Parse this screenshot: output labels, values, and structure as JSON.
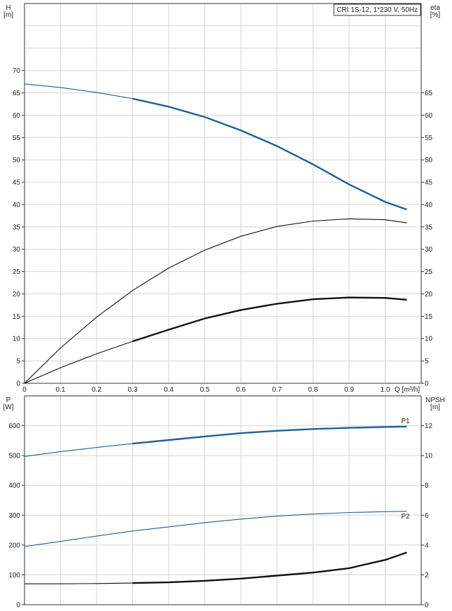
{
  "chart_data": [
    {
      "type": "line",
      "title": "CRI 1S-12, 1*230 V, 50Hz",
      "xlabel": "Q [m³/h]",
      "x_ticks": [
        "0",
        "0.1",
        "0.2",
        "0.3",
        "0.4",
        "0.5",
        "0.6",
        "0.7",
        "0.8",
        "0.9",
        "1.0"
      ],
      "xlim": [
        0,
        1.1
      ],
      "left_axis": {
        "label_top": "H",
        "label_unit": "[m]",
        "ylim": [
          0,
          70
        ],
        "ticks": [
          0,
          5,
          10,
          15,
          20,
          25,
          30,
          35,
          40,
          45,
          50,
          55,
          60,
          65,
          70
        ]
      },
      "right_axis": {
        "label_top": "eta",
        "label_unit": "[%]",
        "ylim": [
          0,
          70
        ],
        "ticks": [
          0,
          5,
          10,
          15,
          20,
          25,
          30,
          35,
          40,
          45,
          50,
          55,
          60,
          65
        ]
      },
      "series": [
        {
          "axis": "left",
          "color": "#1f5f9a",
          "points": [
            [
              0,
              67
            ],
            [
              0.1,
              66.2
            ],
            [
              0.2,
              65.1
            ],
            [
              0.3,
              63.7
            ],
            [
              0.4,
              61.9
            ],
            [
              0.5,
              59.6
            ],
            [
              0.6,
              56.6
            ],
            [
              0.7,
              53.1
            ],
            [
              0.8,
              49.0
            ],
            [
              0.9,
              44.5
            ],
            [
              1.0,
              40.6
            ],
            [
              1.06,
              38.9
            ]
          ],
          "highlight": [
            0.3,
            1.06
          ]
        },
        {
          "axis": "right",
          "color": "#111111",
          "points": [
            [
              0,
              0
            ],
            [
              0.1,
              7.9
            ],
            [
              0.2,
              14.8
            ],
            [
              0.3,
              20.8
            ],
            [
              0.4,
              25.8
            ],
            [
              0.5,
              29.8
            ],
            [
              0.6,
              32.9
            ],
            [
              0.7,
              35.1
            ],
            [
              0.8,
              36.3
            ],
            [
              0.9,
              36.8
            ],
            [
              1.0,
              36.6
            ],
            [
              1.06,
              35.9
            ]
          ],
          "highlight": null
        },
        {
          "axis": "right",
          "color": "#111111",
          "points": [
            [
              0,
              0
            ],
            [
              0.1,
              3.5
            ],
            [
              0.2,
              6.6
            ],
            [
              0.3,
              9.4
            ],
            [
              0.4,
              12.0
            ],
            [
              0.5,
              14.5
            ],
            [
              0.6,
              16.4
            ],
            [
              0.7,
              17.8
            ],
            [
              0.8,
              18.8
            ],
            [
              0.9,
              19.2
            ],
            [
              1.0,
              19.1
            ],
            [
              1.06,
              18.7
            ]
          ],
          "highlight": [
            0.3,
            1.06
          ]
        }
      ]
    },
    {
      "type": "line",
      "xlim": [
        0,
        1.1
      ],
      "left_axis": {
        "label_top": "P",
        "label_unit": "[W]",
        "ylim": [
          0,
          700
        ],
        "ticks": [
          0,
          100,
          200,
          300,
          400,
          500,
          600
        ]
      },
      "right_axis": {
        "label_top": "NPSH",
        "label_unit": "[m]",
        "ylim": [
          0,
          14
        ],
        "ticks": [
          0,
          2,
          4,
          6,
          8,
          10,
          12
        ]
      },
      "series": [
        {
          "name": "P1",
          "axis": "left",
          "color": "#1f5f9a",
          "points": [
            [
              0,
              497
            ],
            [
              0.1,
              513
            ],
            [
              0.2,
              527
            ],
            [
              0.3,
              540
            ],
            [
              0.4,
              552
            ],
            [
              0.5,
              564
            ],
            [
              0.6,
              575
            ],
            [
              0.7,
              583
            ],
            [
              0.8,
              589
            ],
            [
              0.9,
              593
            ],
            [
              1.0,
              596
            ],
            [
              1.06,
              597
            ]
          ],
          "highlight": [
            0.3,
            1.06
          ]
        },
        {
          "name": "P2",
          "axis": "left",
          "color": "#1f5f9a",
          "points": [
            [
              0,
              195
            ],
            [
              0.1,
              212
            ],
            [
              0.2,
              230
            ],
            [
              0.3,
              247
            ],
            [
              0.4,
              261
            ],
            [
              0.5,
              275
            ],
            [
              0.6,
              287
            ],
            [
              0.7,
              297
            ],
            [
              0.8,
              304
            ],
            [
              0.9,
              309
            ],
            [
              1.0,
              312
            ],
            [
              1.06,
              313
            ]
          ],
          "highlight": null
        },
        {
          "axis": "right",
          "color": "#111111",
          "points": [
            [
              0,
              1.4
            ],
            [
              0.1,
              1.4
            ],
            [
              0.2,
              1.42
            ],
            [
              0.3,
              1.45
            ],
            [
              0.4,
              1.5
            ],
            [
              0.5,
              1.6
            ],
            [
              0.6,
              1.75
            ],
            [
              0.7,
              1.95
            ],
            [
              0.8,
              2.15
            ],
            [
              0.9,
              2.45
            ],
            [
              1.0,
              3.0
            ],
            [
              1.06,
              3.5
            ]
          ],
          "highlight": [
            0.3,
            1.06
          ]
        }
      ]
    }
  ]
}
